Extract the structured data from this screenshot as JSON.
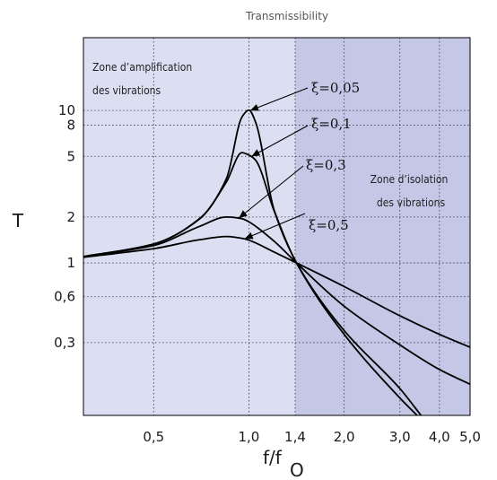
{
  "chart_data": {
    "type": "line",
    "title": "Transmissibility",
    "xlabel": "f/f",
    "xlabel_sub": "O",
    "ylabel": "T",
    "x_scale": "log",
    "y_scale": "log",
    "xlim": [
      0.3,
      5.0
    ],
    "ylim": [
      0.1,
      30
    ],
    "grid": true,
    "x_ticks": [
      {
        "value": 0.5,
        "label": "0,5"
      },
      {
        "value": 1.0,
        "label": "1,0"
      },
      {
        "value": 1.4,
        "label": "1,4"
      },
      {
        "value": 2.0,
        "label": "2,0"
      },
      {
        "value": 3.0,
        "label": "3,0"
      },
      {
        "value": 4.0,
        "label": "4,0"
      },
      {
        "value": 5.0,
        "label": "5,0"
      }
    ],
    "y_ticks": [
      {
        "value": 0.3,
        "label": "0,3"
      },
      {
        "value": 0.6,
        "label": "0,6"
      },
      {
        "value": 1,
        "label": "1"
      },
      {
        "value": 2,
        "label": "2"
      },
      {
        "value": 5,
        "label": "5"
      },
      {
        "value": 8,
        "label": "8"
      },
      {
        "value": 10,
        "label": "10"
      }
    ],
    "zones": [
      {
        "label_lines": [
          "Zone d’amplification",
          "des vibrations"
        ],
        "x_range": [
          0.3,
          1.4
        ],
        "color": "#dcdff2"
      },
      {
        "label_lines": [
          "Zone d’isolation",
          "des vibrations"
        ],
        "x_range": [
          1.4,
          5.0
        ],
        "color": "#c4c8e6"
      }
    ],
    "series": [
      {
        "name": "ξ=0,05",
        "damping": 0.05,
        "x": [
          0.3,
          0.5,
          0.7,
          0.85,
          0.95,
          1.0,
          1.05,
          1.2,
          1.414,
          2.0,
          3.0,
          3.4
        ],
        "y": [
          1.1,
          1.33,
          1.96,
          3.59,
          9.03,
          10.05,
          8.37,
          2.24,
          1.0,
          0.34,
          0.13,
          0.1
        ]
      },
      {
        "name": "ξ=0,1",
        "damping": 0.1,
        "x": [
          0.3,
          0.5,
          0.7,
          0.85,
          0.95,
          1.0,
          1.05,
          1.2,
          1.414,
          2.0,
          3.0,
          3.5
        ],
        "y": [
          1.1,
          1.33,
          1.95,
          3.41,
          5.29,
          5.1,
          4.72,
          2.21,
          1.0,
          0.36,
          0.15,
          0.1
        ]
      },
      {
        "name": "ξ=0,3",
        "damping": 0.3,
        "x": [
          0.3,
          0.5,
          0.7,
          0.85,
          0.95,
          1.0,
          1.2,
          1.414,
          2.0,
          3.0,
          4.0,
          5.0
        ],
        "y": [
          1.1,
          1.3,
          1.74,
          2.0,
          1.95,
          1.86,
          1.39,
          1.0,
          0.52,
          0.29,
          0.2,
          0.16
        ]
      },
      {
        "name": "ξ=0,5",
        "damping": 0.5,
        "x": [
          0.3,
          0.5,
          0.7,
          0.85,
          0.95,
          1.0,
          1.2,
          1.414,
          2.0,
          3.0,
          4.0,
          5.0
        ],
        "y": [
          1.09,
          1.24,
          1.42,
          1.49,
          1.45,
          1.41,
          1.18,
          1.0,
          0.7,
          0.45,
          0.34,
          0.28
        ]
      }
    ]
  }
}
